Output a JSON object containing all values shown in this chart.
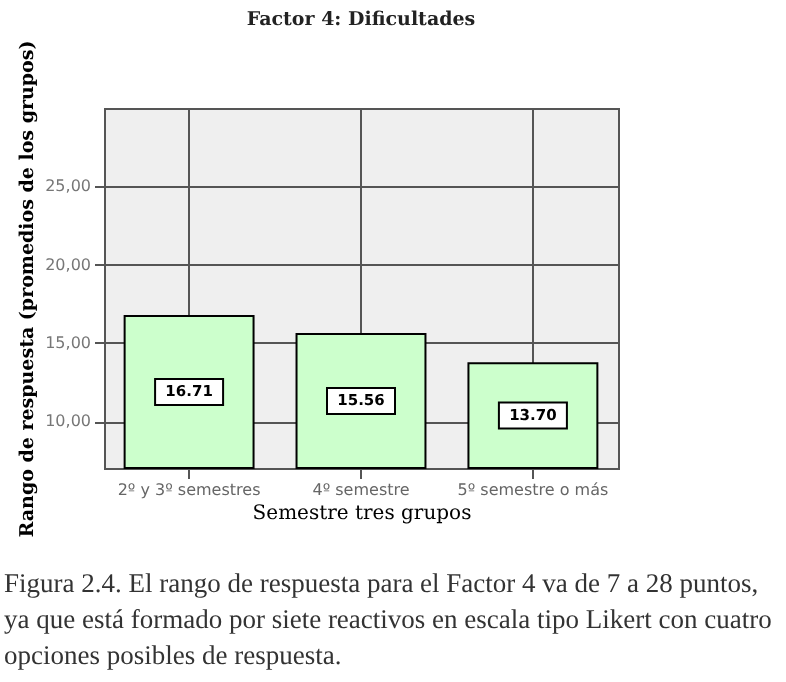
{
  "chart_data": {
    "type": "bar",
    "title": "Factor 4: Dificultades",
    "xlabel": "Semestre tres grupos",
    "ylabel": "Rango de respuesta (promedios de los grupos)",
    "categories": [
      "2º y 3º semestres",
      "4º semestre",
      "5º semestre o más"
    ],
    "values": [
      16.71,
      15.56,
      13.7
    ],
    "value_labels": [
      "16.71",
      "15.56",
      "13.70"
    ],
    "color": "#ccffcc",
    "ylim": [
      7,
      30
    ],
    "yticks": [
      {
        "value": 10,
        "label": "10,00"
      },
      {
        "value": 15,
        "label": "15,00"
      },
      {
        "value": 20,
        "label": "20,00"
      },
      {
        "value": 25,
        "label": "25,00"
      }
    ],
    "grid": true,
    "annotations": [
      "Figura 2.4. El rango de respuesta para el Factor 4 va de 7 a 28 puntos, ya que está formado por siete reactivos en escala tipo Likert con cuatro opciones posibles de respuesta."
    ]
  }
}
